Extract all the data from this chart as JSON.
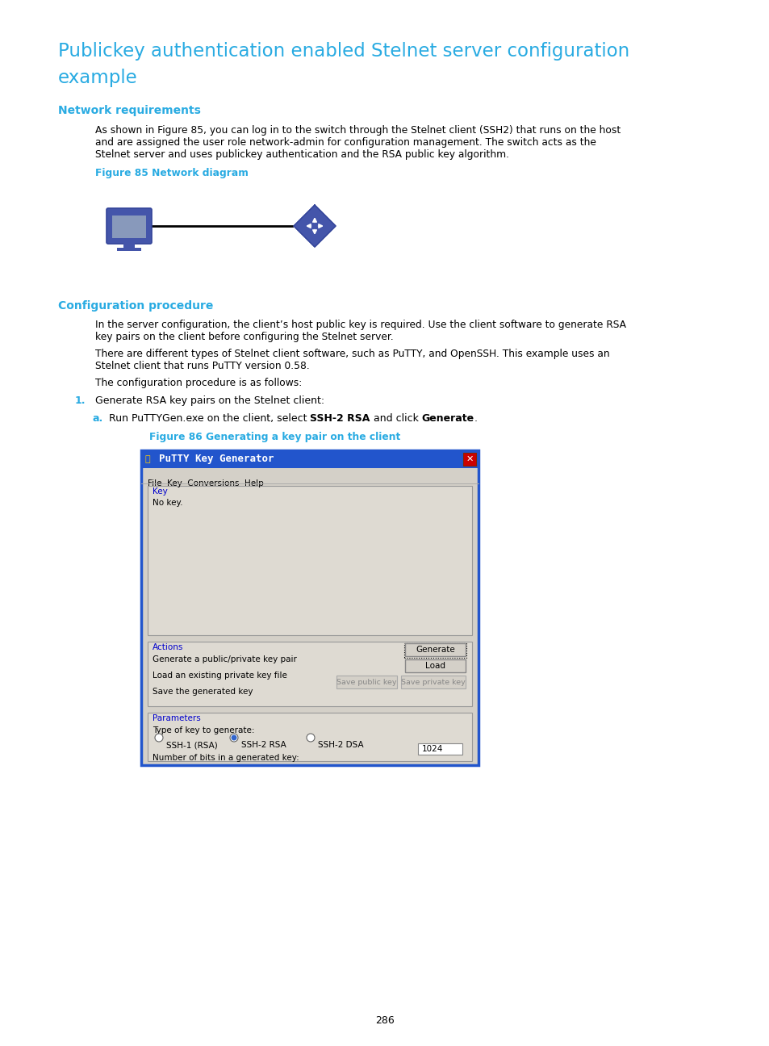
{
  "page_bg": "#ffffff",
  "title_line1": "Publickey authentication enabled Stelnet server configuration",
  "title_line2": "example",
  "title_color": "#29abe2",
  "title_fontsize": 16.5,
  "section1_heading": "Network requirements",
  "section1_color": "#29abe2",
  "section1_fontsize": 10,
  "section1_body_line1": "As shown in Figure 85, you can log in to the switch through the Stelnet client (SSH2) that runs on the host",
  "section1_body_line2": "and are assigned the user role network-admin for configuration management. The switch acts as the",
  "section1_body_line3": "Stelnet server and uses publickey authentication and the RSA public key algorithm.",
  "figure85_label": "Figure 85 Network diagram",
  "figure85_label_color": "#29abe2",
  "section2_heading": "Configuration procedure",
  "section2_color": "#29abe2",
  "section2_fontsize": 10,
  "section2_body1_line1": "In the server configuration, the client’s host public key is required. Use the client software to generate RSA",
  "section2_body1_line2": "key pairs on the client before configuring the Stelnet server.",
  "section2_body2_line1": "There are different types of Stelnet client software, such as PuTTY, and OpenSSH. This example uses an",
  "section2_body2_line2": "Stelnet client that runs PuTTY version 0.58.",
  "section2_body3": "The configuration procedure is as follows:",
  "step1_num": "1.",
  "step1_text": "Generate RSA key pairs on the Stelnet client:",
  "step1a_num": "a.",
  "step1a_pre": "Run PuTTYGen.exe on the client, select ",
  "step1a_bold1": "SSH-2 RSA",
  "step1a_mid": " and click ",
  "step1a_bold2": "Generate",
  "step1a_post": ".",
  "figure86_label": "Figure 86 Generating a key pair on the client",
  "figure86_label_color": "#29abe2",
  "page_number": "286",
  "putty_title": "PuTTY Key Generator",
  "putty_title_bg": "#2255cc",
  "putty_title_color": "#ffffff",
  "putty_menu": "File  Key  Conversions  Help",
  "putty_key_label": "Key",
  "putty_key_content": "No key.",
  "putty_actions_label": "Actions",
  "putty_action1": "Generate a public/private key pair",
  "putty_btn_generate": "Generate",
  "putty_action2": "Load an existing private key file",
  "putty_btn_load": "Load",
  "putty_action3": "Save the generated key",
  "putty_btn_savepublic": "Save public key",
  "putty_btn_saveprivate": "Save private key",
  "putty_params_label": "Parameters",
  "putty_param_type": "Type of key to generate:",
  "putty_radio1": "SSH-1 (RSA)",
  "putty_radio2": "SSH-2 RSA",
  "putty_radio3": "SSH-2 DSA",
  "putty_bits_label": "Number of bits in a generated key:",
  "putty_bits_value": "1024",
  "putty_border_color": "#2255cc",
  "putty_win_bg": "#d4d0c8",
  "putty_inner_bg": "#dedad2",
  "putty_key_area_bg": "#dedad2",
  "putty_close_color": "#cc2222",
  "putty_label_color": "#0000cc",
  "body_fontsize": 8.8,
  "step_fontsize": 9.0,
  "fig_label_fontsize": 8.8
}
